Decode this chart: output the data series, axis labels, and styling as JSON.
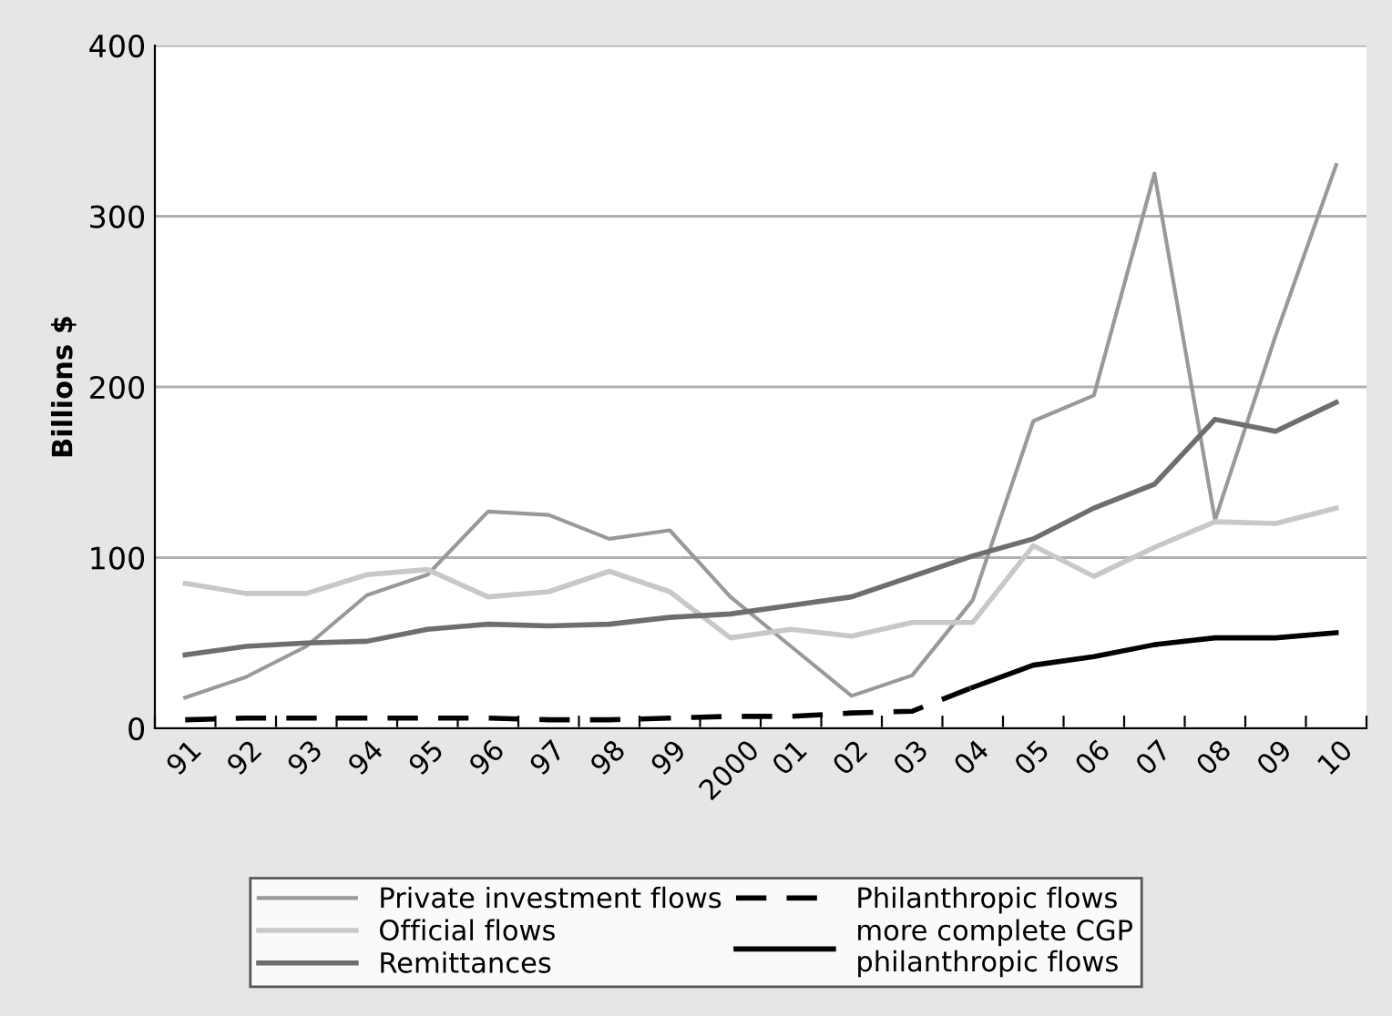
{
  "chart_data": {
    "type": "line",
    "ylabel": "Billions $",
    "categories": [
      "91",
      "92",
      "93",
      "94",
      "95",
      "96",
      "97",
      "98",
      "99",
      "2000",
      "01",
      "02",
      "03",
      "04",
      "05",
      "06",
      "07",
      "08",
      "09",
      "10"
    ],
    "series": [
      {
        "name": "Private investment flows",
        "color": "#999999",
        "values": [
          18,
          30,
          48,
          78,
          90,
          127,
          125,
          111,
          116,
          77,
          48,
          19,
          31,
          75,
          180,
          195,
          325,
          122,
          230,
          330
        ]
      },
      {
        "name": "Official flows",
        "color": "#c8c8c8",
        "values": [
          85,
          79,
          79,
          90,
          93,
          77,
          80,
          92,
          80,
          53,
          58,
          54,
          62,
          62,
          107,
          89,
          106,
          121,
          120,
          129
        ]
      },
      {
        "name": "Remittances",
        "color": "#6e6e6e",
        "values": [
          43,
          48,
          50,
          51,
          58,
          61,
          60,
          61,
          65,
          67,
          72,
          77,
          89,
          101,
          111,
          129,
          143,
          181,
          174,
          191
        ]
      },
      {
        "name": "Philanthropic flows",
        "color": "#000000",
        "line_style": "dashed",
        "values": [
          5,
          6,
          6,
          6,
          6,
          6,
          5,
          5,
          6,
          7,
          7,
          9,
          10,
          24,
          null,
          null,
          null,
          null,
          null,
          null
        ]
      },
      {
        "name": "more complete CGP\nphilanthropic flows",
        "color": "#000000",
        "line_style": "solid",
        "values": [
          null,
          null,
          null,
          null,
          null,
          null,
          null,
          null,
          null,
          null,
          null,
          null,
          null,
          24,
          37,
          42,
          49,
          53,
          53,
          56
        ]
      }
    ],
    "ylim": [
      0,
      400
    ],
    "yticks": [
      0,
      100,
      200,
      300,
      400
    ],
    "grid": "y",
    "legend": "bottom"
  }
}
